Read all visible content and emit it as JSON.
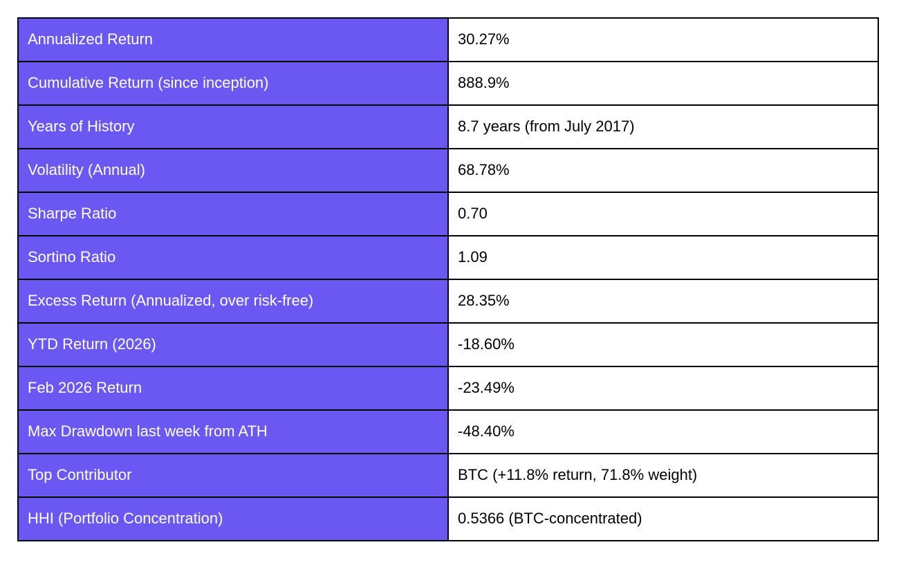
{
  "table": {
    "rows": [
      {
        "label": "Annualized Return",
        "value": "30.27%"
      },
      {
        "label": "Cumulative Return (since inception)",
        "value": "888.9%"
      },
      {
        "label": "Years of History",
        "value": "8.7 years (from July 2017)"
      },
      {
        "label": "Volatility (Annual)",
        "value": "68.78%"
      },
      {
        "label": "Sharpe Ratio",
        "value": "0.70"
      },
      {
        "label": "Sortino Ratio",
        "value": "1.09"
      },
      {
        "label": "Excess Return (Annualized, over risk-free)",
        "value": "28.35%"
      },
      {
        "label": "YTD Return (2026)",
        "value": "-18.60%"
      },
      {
        "label": "Feb 2026 Return",
        "value": "-23.49%"
      },
      {
        "label": "Max Drawdown last week from ATH",
        "value": "-48.40%"
      },
      {
        "label": "Top Contributor",
        "value": "BTC (+11.8% return, 71.8% weight)"
      },
      {
        "label": "HHI (Portfolio Concentration)",
        "value": "0.5366 (BTC-concentrated)"
      }
    ]
  },
  "colors": {
    "label_bg": "#6b58f2",
    "label_text": "#ffffff",
    "value_bg": "#ffffff",
    "value_text": "#000000",
    "border": "#000000",
    "page_bg": "#ffffff"
  }
}
